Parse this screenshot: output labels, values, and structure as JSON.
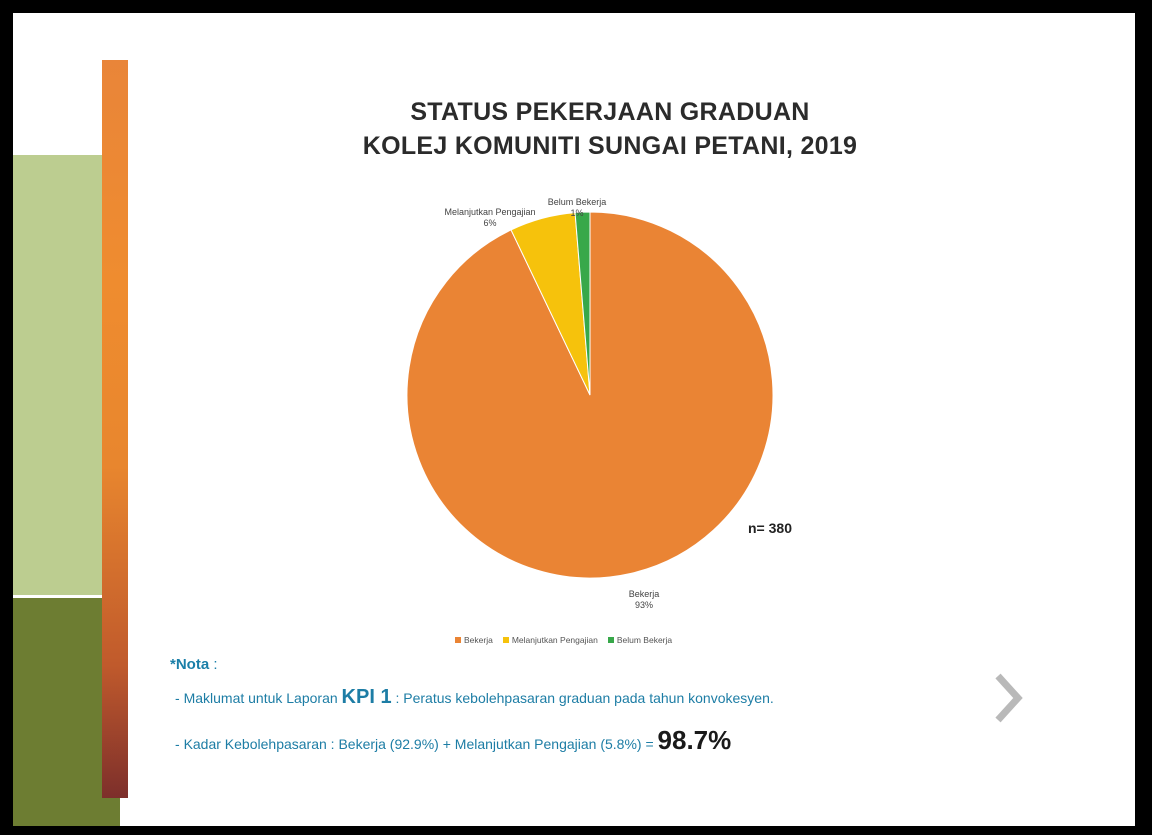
{
  "chart_data": {
    "type": "pie",
    "title_line1": "STATUS PEKERJAAN GRADUAN",
    "title_line2": "KOLEJ KOMUNITI SUNGAI PETANI, 2019",
    "slices": [
      {
        "name": "Bekerja",
        "percent_label": "93%",
        "value": 92.9,
        "color": "#ea8434"
      },
      {
        "name": "Melanjutkan Pengajian",
        "percent_label": "6%",
        "value": 5.8,
        "color": "#f6c20c"
      },
      {
        "name": "Belum Bekerja",
        "percent_label": "1%",
        "value": 1.3,
        "color": "#38a84a"
      }
    ],
    "n_label": "n= 380",
    "legend_placement": "bottom"
  },
  "notes": {
    "heading": "*Nota",
    "heading_suffix": " :",
    "line1_dash": "-",
    "line1_text_a": "Maklumat untuk Laporan ",
    "line1_kpi": "KPI 1",
    "line1_text_b": " : Peratus kebolehpasaran graduan pada tahun konvokesyen.",
    "line2_dash": "-",
    "line2_text": "Kadar Kebolehpasaran :  Bekerja (92.9%) + Melanjutkan Pengajian (5.8%) = ",
    "line2_result": "98.7%"
  },
  "colors": {
    "accent_text": "#1d7da5",
    "frame": "#000000",
    "side_green_light": "#bccd90",
    "side_green_dark": "#6d7d32"
  },
  "icons": {
    "next": "chevron-right-icon"
  }
}
